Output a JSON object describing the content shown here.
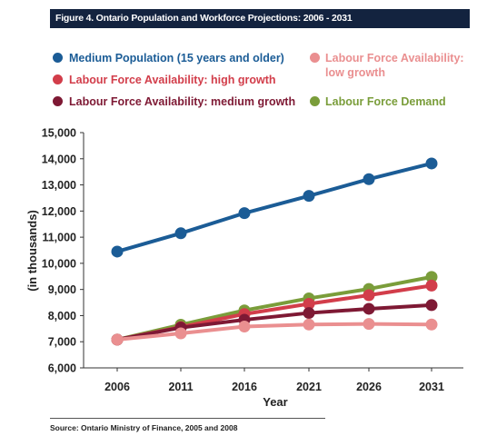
{
  "figure_title": "Figure 4. Ontario Population and Workforce Projections: 2006 - 2031",
  "source": "Source: Ontario Ministry of Finance, 2005 and 2008",
  "chart_data": {
    "type": "line",
    "xlabel": "Year",
    "ylabel": "(in thousands)",
    "categories": [
      "2006",
      "2011",
      "2016",
      "2021",
      "2026",
      "2031"
    ],
    "ylim": [
      6000,
      15000
    ],
    "yticks": [
      "6,000",
      "7,000",
      "8,000",
      "9,000",
      "10,000",
      "11,000",
      "12,000",
      "13,000",
      "14,000",
      "15,000"
    ],
    "grid": false,
    "series": [
      {
        "name": "Medium Population (15 years and older)",
        "color": "#1b5c96",
        "values": [
          10450,
          11150,
          11920,
          12580,
          13220,
          13820
        ]
      },
      {
        "name": "Labour Force Demand",
        "color": "#7a9d3a",
        "values": [
          7080,
          7650,
          8200,
          8660,
          9020,
          9480
        ]
      },
      {
        "name": "Labour Force Availability: high growth",
        "color": "#d23d4a",
        "values": [
          7080,
          7560,
          8060,
          8450,
          8780,
          9150
        ]
      },
      {
        "name": "Labour Force Availability: medium growth",
        "color": "#7e1934",
        "values": [
          7080,
          7540,
          7840,
          8100,
          8260,
          8400
        ]
      },
      {
        "name": "Labour Force Availability: low growth",
        "color": "#ea8f90",
        "values": [
          7080,
          7320,
          7580,
          7660,
          7680,
          7660
        ]
      }
    ]
  }
}
